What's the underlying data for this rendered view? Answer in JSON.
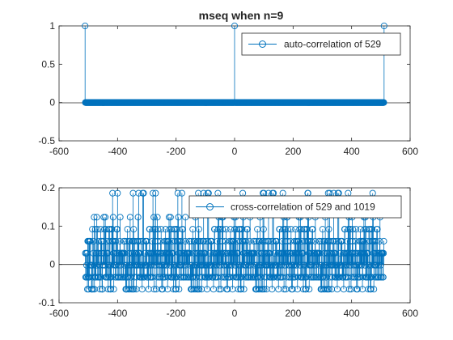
{
  "figure_title": "mseq when n=9",
  "colors": {
    "series": "#0072BD",
    "axes": "#262626",
    "background": "#ffffff"
  },
  "chart_data": [
    {
      "type": "stem",
      "title": "mseq when n=9",
      "xlabel": "",
      "ylabel": "",
      "xlim": [
        -600,
        600
      ],
      "ylim": [
        -0.5,
        1
      ],
      "xticks": [
        -600,
        -400,
        -200,
        0,
        200,
        400,
        600
      ],
      "yticks": [
        -0.5,
        0,
        0.5,
        1
      ],
      "xtick_labels": [
        "-600",
        "-400",
        "-200",
        "0",
        "200",
        "400",
        "600"
      ],
      "ytick_labels": [
        "-0.5",
        "0",
        "0.5",
        "1"
      ],
      "grid": false,
      "legend_position": "top-right",
      "series": [
        {
          "name": "auto-correlation of 529",
          "lag_range": [
            -510,
            510
          ],
          "baseline_value": 0,
          "peaks": [
            {
              "x": -511,
              "y": 1
            },
            {
              "x": 0,
              "y": 1
            },
            {
              "x": 511,
              "y": 1
            }
          ]
        }
      ]
    },
    {
      "type": "stem",
      "title": "",
      "xlabel": "",
      "ylabel": "",
      "xlim": [
        -600,
        600
      ],
      "ylim": [
        -0.1,
        0.2
      ],
      "xticks": [
        -600,
        -400,
        -200,
        0,
        200,
        400,
        600
      ],
      "yticks": [
        -0.1,
        0,
        0.1,
        0.2
      ],
      "xtick_labels": [
        "-600",
        "-400",
        "-200",
        "0",
        "200",
        "400",
        "600"
      ],
      "ytick_labels": [
        "-0.1",
        "0",
        "0.1",
        "0.2"
      ],
      "grid": false,
      "legend_position": "top-right",
      "series": [
        {
          "name": "cross-correlation of 529 and 1019",
          "lag_range": [
            -510,
            510
          ],
          "value_levels": [
            -0.0646,
            -0.0333,
            -0.002,
            0.0294,
            0.0607,
            0.092,
            0.1233,
            0.1859
          ],
          "highlight_points": [
            {
              "x": -400,
              "y": 0.1859
            },
            {
              "x": -270,
              "y": 0.1859
            },
            {
              "x": -180,
              "y": 0.1859
            },
            {
              "x": 100,
              "y": 0.1859
            },
            {
              "x": 250,
              "y": 0.1859
            },
            {
              "x": 325,
              "y": 0.1859
            },
            {
              "x": -480,
              "y": 0.1233
            },
            {
              "x": -330,
              "y": 0.1233
            },
            {
              "x": -40,
              "y": 0.1233
            },
            {
              "x": 180,
              "y": 0.1233
            }
          ]
        }
      ]
    }
  ]
}
